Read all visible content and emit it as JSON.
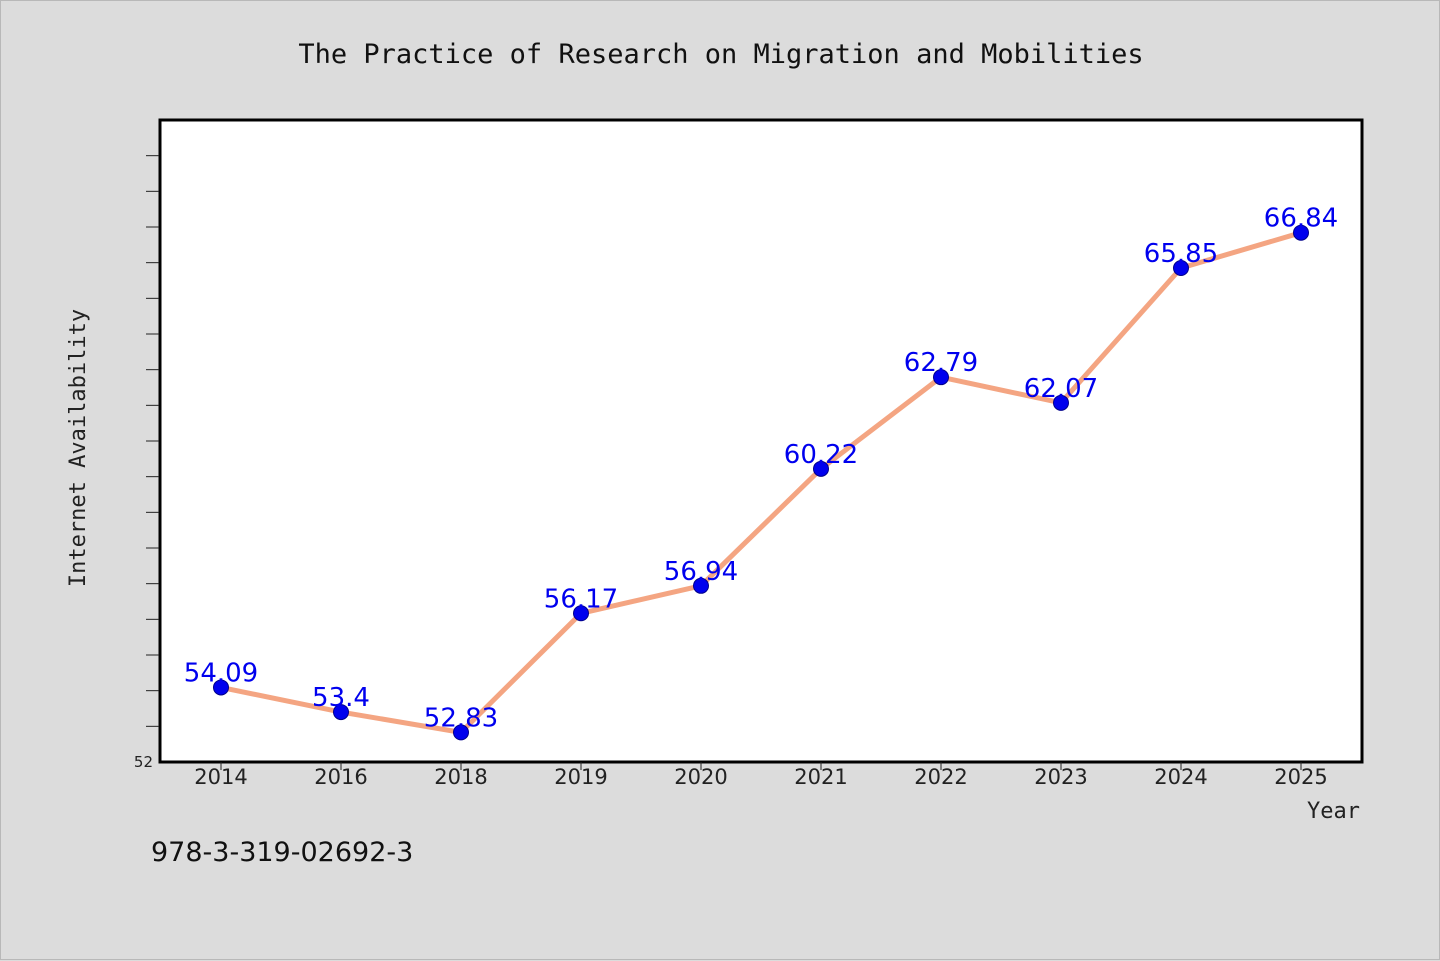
{
  "chart_data": {
    "type": "line",
    "title": "The Practice of Research on Migration and Mobilities",
    "xlabel": "Year",
    "ylabel": "Internet Availability",
    "categories": [
      "2014",
      "2016",
      "2018",
      "2019",
      "2020",
      "2021",
      "2022",
      "2023",
      "2024",
      "2025"
    ],
    "series": [
      {
        "values": [
          54.09,
          53.4,
          52.83,
          56.17,
          56.94,
          60.22,
          62.79,
          62.07,
          65.85,
          66.84
        ]
      }
    ],
    "data_labels": [
      "54.09",
      "53.4",
      "52.83",
      "56.17",
      "56.94",
      "60.22",
      "62.79",
      "62.07",
      "65.85",
      "66.84"
    ],
    "ylim": [
      52,
      70
    ],
    "y_min_label": "52",
    "grid": false,
    "line_color": "#f4a582",
    "marker_color": "#0000ee",
    "label_color": "#0000ee",
    "plot_background": "#ffffff",
    "page_background": "#dcdcdc"
  },
  "footer": {
    "code": "978-3-319-02692-3"
  }
}
